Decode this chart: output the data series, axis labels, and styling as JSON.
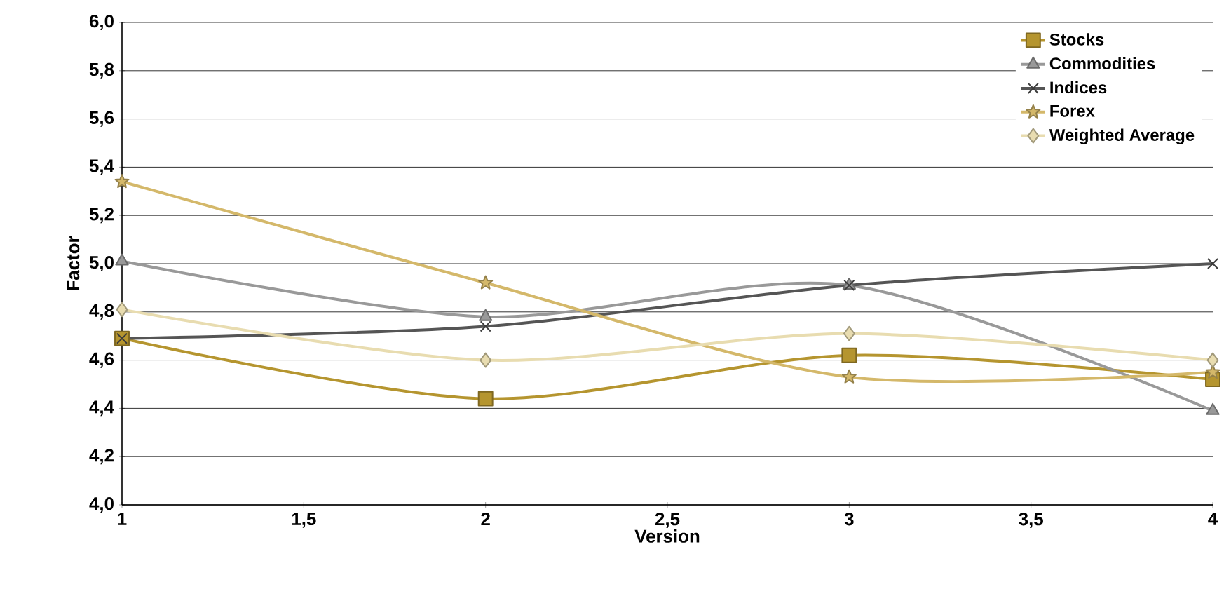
{
  "chart_data": {
    "type": "line",
    "xlabel": "Version",
    "ylabel": "Factor",
    "x": [
      1,
      2,
      3,
      4
    ],
    "series": [
      {
        "name": "Stocks",
        "color": "#b5952f",
        "marker": "square",
        "values": [
          4.69,
          4.44,
          4.62,
          4.52
        ]
      },
      {
        "name": "Commodities",
        "color": "#999999",
        "marker": "triangle",
        "values": [
          5.01,
          4.78,
          4.91,
          4.39
        ]
      },
      {
        "name": "Indices",
        "color": "#555555",
        "marker": "cross",
        "values": [
          4.69,
          4.74,
          4.91,
          5.0
        ]
      },
      {
        "name": "Forex",
        "color": "#d4b86a",
        "marker": "star",
        "values": [
          5.34,
          4.92,
          4.53,
          4.55
        ]
      },
      {
        "name": "Weighted Average",
        "color": "#e8dcb0",
        "marker": "diamond",
        "values": [
          4.81,
          4.6,
          4.71,
          4.6
        ]
      }
    ],
    "xlim": [
      1,
      4
    ],
    "ylim": [
      4.0,
      6.0
    ],
    "xticks": [
      1,
      {
        "value": 1.5,
        "label": "1,5"
      },
      2,
      {
        "value": 2.5,
        "label": "2,5"
      },
      3,
      {
        "value": 3.5,
        "label": "3,5"
      },
      4
    ],
    "yticks": [
      {
        "value": 4.0,
        "label": "4,0"
      },
      {
        "value": 4.2,
        "label": "4,2"
      },
      {
        "value": 4.4,
        "label": "4,4"
      },
      {
        "value": 4.6,
        "label": "4,6"
      },
      {
        "value": 4.8,
        "label": "4,8"
      },
      {
        "value": 5.0,
        "label": "5,0"
      },
      {
        "value": 5.2,
        "label": "5,2"
      },
      {
        "value": 5.4,
        "label": "5,4"
      },
      {
        "value": 5.6,
        "label": "5,6"
      },
      {
        "value": 5.8,
        "label": "5,8"
      },
      {
        "value": 6.0,
        "label": "6,0"
      }
    ],
    "grid": "y",
    "legend": "top right",
    "line_style": "solid"
  }
}
